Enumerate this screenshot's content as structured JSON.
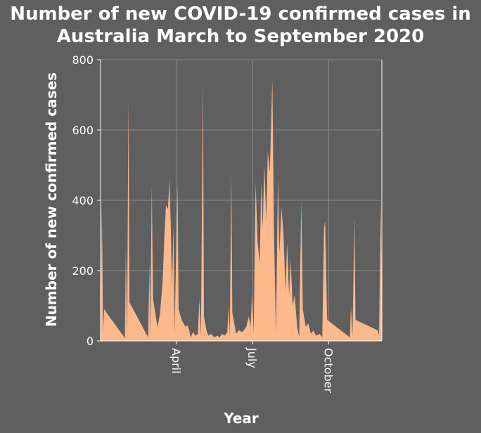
{
  "chart_data": {
    "type": "area",
    "title": "Number of new COVID-19 confirmed cases in Australia March to September 2020",
    "title_lines": [
      "Number of new COVID-19 confirmed cases in",
      "Australia March to September 2020"
    ],
    "xlabel": "Year",
    "ylabel": "Number of new confirmed cases",
    "ylim": [
      0,
      800
    ],
    "y_ticks": [
      0,
      200,
      400,
      600,
      800
    ],
    "x_ticks": [
      {
        "label": "April",
        "x": 30
      },
      {
        "label": "July",
        "x": 60
      },
      {
        "label": "October",
        "x": 90
      }
    ],
    "xlim": [
      0,
      111
    ],
    "grid": true,
    "colors": {
      "fill": "#fdb98c",
      "background": "#5f5f5f",
      "grid": "#8a8a8a"
    },
    "points": [
      [
        0,
        10
      ],
      [
        0.5,
        395
      ],
      [
        1,
        25
      ],
      [
        1.4,
        90
      ],
      [
        9.6,
        8
      ],
      [
        10,
        270
      ],
      [
        10.5,
        10
      ],
      [
        11,
        690
      ],
      [
        11.4,
        110
      ],
      [
        18.8,
        10
      ],
      [
        19.3,
        220
      ],
      [
        19.6,
        5
      ],
      [
        20.2,
        440
      ],
      [
        20.7,
        120
      ],
      [
        22,
        60
      ],
      [
        22.5,
        40
      ],
      [
        23.5,
        80
      ],
      [
        24.5,
        170
      ],
      [
        25.2,
        300
      ],
      [
        25.8,
        385
      ],
      [
        26.6,
        375
      ],
      [
        27.2,
        460
      ],
      [
        27.8,
        300
      ],
      [
        28.2,
        150
      ],
      [
        28.8,
        330
      ],
      [
        29.2,
        20
      ],
      [
        30.4,
        450
      ],
      [
        30.8,
        90
      ],
      [
        32,
        60
      ],
      [
        33.5,
        40
      ],
      [
        34.2,
        45
      ],
      [
        35,
        30
      ],
      [
        35.5,
        10
      ],
      [
        36.5,
        25
      ],
      [
        37.5,
        15
      ],
      [
        38.4,
        20
      ],
      [
        39,
        120
      ],
      [
        39.6,
        10
      ],
      [
        40.4,
        730
      ],
      [
        40.8,
        70
      ],
      [
        41.8,
        30
      ],
      [
        42.5,
        15
      ],
      [
        43.5,
        20
      ],
      [
        45,
        10
      ],
      [
        46,
        15
      ],
      [
        47,
        10
      ],
      [
        48,
        20
      ],
      [
        49,
        15
      ],
      [
        50,
        25
      ],
      [
        50.6,
        100
      ],
      [
        51,
        10
      ],
      [
        51.6,
        480
      ],
      [
        52,
        80
      ],
      [
        53.5,
        20
      ],
      [
        54.5,
        30
      ],
      [
        56,
        25
      ],
      [
        57.5,
        40
      ],
      [
        58.5,
        70
      ],
      [
        59.2,
        40
      ],
      [
        59.8,
        130
      ],
      [
        60.4,
        20
      ],
      [
        61.2,
        450
      ],
      [
        62,
        280
      ],
      [
        62.8,
        220
      ],
      [
        63.4,
        450
      ],
      [
        64,
        320
      ],
      [
        64.6,
        500
      ],
      [
        65.4,
        340
      ],
      [
        66,
        540
      ],
      [
        66.8,
        480
      ],
      [
        67.8,
        745
      ],
      [
        68.4,
        320
      ],
      [
        69.2,
        20
      ],
      [
        70,
        460
      ],
      [
        70.6,
        250
      ],
      [
        71.4,
        380
      ],
      [
        72.2,
        300
      ],
      [
        73,
        140
      ],
      [
        73.6,
        280
      ],
      [
        74.4,
        130
      ],
      [
        75,
        230
      ],
      [
        75.8,
        100
      ],
      [
        76.6,
        130
      ],
      [
        77.6,
        40
      ],
      [
        78.4,
        10
      ],
      [
        79.2,
        400
      ],
      [
        79.8,
        90
      ],
      [
        81,
        40
      ],
      [
        82,
        50
      ],
      [
        83,
        20
      ],
      [
        84,
        30
      ],
      [
        85,
        15
      ],
      [
        86.5,
        20
      ],
      [
        87.5,
        10
      ],
      [
        88.2,
        320
      ],
      [
        88.6,
        340
      ],
      [
        89.4,
        60
      ],
      [
        98.4,
        10
      ],
      [
        98.8,
        100
      ],
      [
        99.4,
        10
      ],
      [
        100.2,
        350
      ],
      [
        100.6,
        60
      ],
      [
        109.4,
        30
      ],
      [
        109.9,
        15
      ],
      [
        110.6,
        395
      ],
      [
        111,
        60
      ]
    ]
  }
}
